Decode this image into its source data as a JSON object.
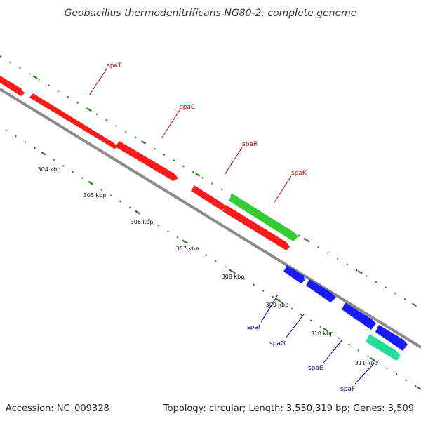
{
  "title": "Geobacillus thermodenitrificans NG80-2, complete genome",
  "footer": {
    "accession": "Accession: NC_009328",
    "summary": "Topology: circular; Length: 3,550,319 bp; Genes: 3,509"
  },
  "colors": {
    "backbone": "#8a8a8a",
    "tick": "#2d7a20",
    "label_forward": "#cc0000",
    "label_reverse": "#0000aa"
  },
  "scale_labels": [
    "304 kbp",
    "305 kbp",
    "306 kbp",
    "307 kbp",
    "308 kbp",
    "309 kbp",
    "310 kbp",
    "311 kbp"
  ],
  "genes": [
    {
      "label": "",
      "color": "#ff1a1a"
    },
    {
      "label": "spaT",
      "color": "#ff1a1a"
    },
    {
      "label": "spaC",
      "color": "#ff1a1a"
    },
    {
      "label": "spaR",
      "color": "#ff1a1a"
    },
    {
      "label": "spaK",
      "color": "#33cc33"
    },
    {
      "label": "",
      "color": "#ff1a1a"
    },
    {
      "label": "",
      "color": "#1a1aff"
    },
    {
      "label": "spaI",
      "color": "#1a1aff"
    },
    {
      "label": "spaG",
      "color": "#1a1aff"
    },
    {
      "label": "spaE",
      "color": "#1a1aff"
    },
    {
      "label": "spaF",
      "color": "#22dd99"
    }
  ]
}
